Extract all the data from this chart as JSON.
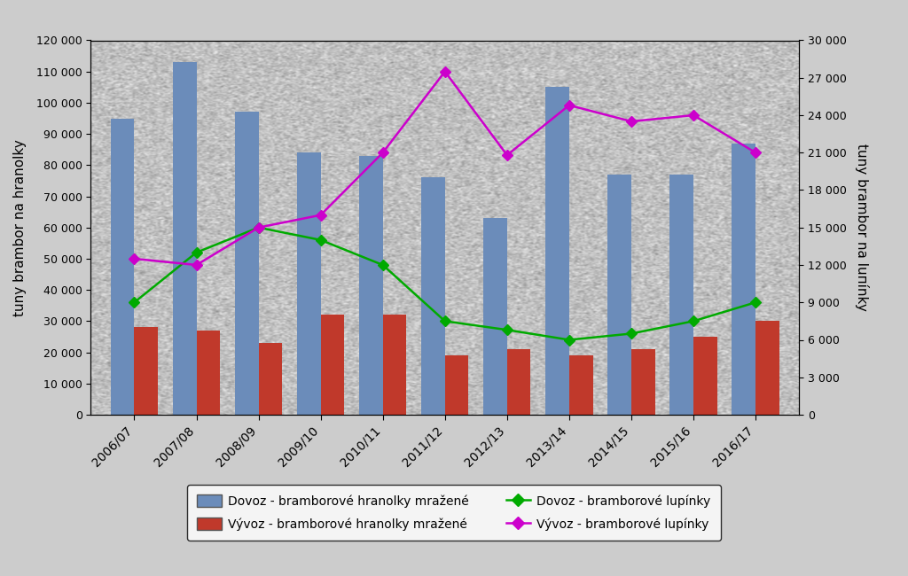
{
  "categories": [
    "2006/07",
    "2007/08",
    "2008/09",
    "2009/10",
    "2010/11",
    "2011/12",
    "2012/13",
    "2013/14",
    "2014/15",
    "2015/16",
    "2016/17"
  ],
  "dovoz_hranolky": [
    95000,
    113000,
    97000,
    84000,
    83000,
    76000,
    63000,
    105000,
    77000,
    77000,
    87000
  ],
  "vyvoz_hranolky": [
    28000,
    27000,
    23000,
    32000,
    32000,
    19000,
    21000,
    19000,
    21000,
    25000,
    30000
  ],
  "dovoz_lupinky": [
    9000,
    13000,
    15000,
    14000,
    12000,
    7500,
    6800,
    6000,
    6500,
    7500,
    9000
  ],
  "vyvoz_lupinky": [
    12500,
    12000,
    15000,
    16000,
    21000,
    27500,
    20800,
    24800,
    23500,
    24000,
    21000
  ],
  "left_ylim": [
    0,
    120000
  ],
  "right_ylim": [
    0,
    30000
  ],
  "left_yticks": [
    0,
    10000,
    20000,
    30000,
    40000,
    50000,
    60000,
    70000,
    80000,
    90000,
    100000,
    110000,
    120000
  ],
  "right_yticks": [
    0,
    3000,
    6000,
    9000,
    12000,
    15000,
    18000,
    21000,
    24000,
    27000,
    30000
  ],
  "bar_dovoz_color": "#6b8cba",
  "bar_vyvoz_color": "#c0392b",
  "line_dovoz_color": "#00aa00",
  "line_vyvoz_color": "#cc00cc",
  "ylabel_left": "tuny brambor na hranolky",
  "ylabel_right": "tuny brambor na luпínky",
  "legend_labels": [
    "Dovoz - bramborové hranolky mražené",
    "Vývoz - bramborové hranolky mražené",
    "Dovoz - bramborové lupínky",
    "Vývoz - bramborové lupínky"
  ],
  "fig_bg_color": "#cccccc",
  "plot_bg_color": "#e8e8e8",
  "bar_width": 0.38
}
